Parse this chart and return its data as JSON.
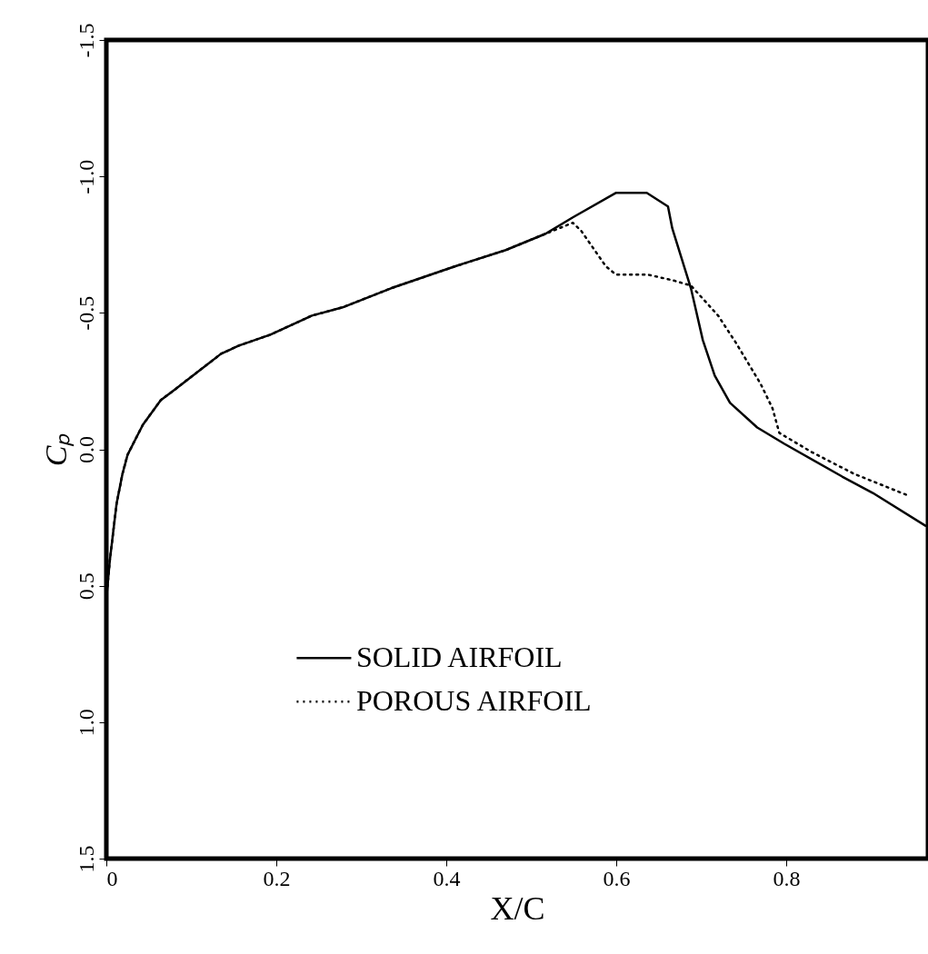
{
  "chart_data": {
    "type": "line",
    "xlabel": "X/C",
    "ylabel": "Cₚ",
    "xlim": [
      0,
      0.967
    ],
    "ylim": [
      1.5,
      -1.5
    ],
    "xticks": [
      0,
      0.2,
      0.4,
      0.6,
      0.8
    ],
    "yticks": [
      -1.5,
      {
        "value": -1,
        "label": "-1.0"
      },
      -0.5,
      {
        "value": 0,
        "label": "0.0"
      },
      0.5,
      {
        "value": 1,
        "label": "1.0"
      },
      1.5
    ],
    "grid": false,
    "legend": "bottom",
    "marker": "none",
    "series": [
      {
        "name": "SOLID AIRFOIL",
        "color": "#000000",
        "line_style": "solid",
        "x": [
          0,
          0.004,
          0.012,
          0.019,
          0.025,
          0.043,
          0.064,
          0.081,
          0.11,
          0.135,
          0.156,
          0.193,
          0.242,
          0.278,
          0.335,
          0.41,
          0.47,
          0.517,
          0.549,
          0.6,
          0.636,
          0.661,
          0.666,
          0.688,
          0.702,
          0.716,
          0.734,
          0.766,
          0.798,
          0.866,
          0.902,
          0.964
        ],
        "values": [
          0.55,
          0.41,
          0.2,
          0.09,
          0.02,
          -0.09,
          -0.18,
          -0.22,
          -0.29,
          -0.35,
          -0.38,
          -0.42,
          -0.49,
          -0.52,
          -0.59,
          -0.67,
          -0.73,
          -0.79,
          -0.85,
          -0.94,
          -0.94,
          -0.89,
          -0.81,
          -0.59,
          -0.4,
          -0.27,
          -0.17,
          -0.08,
          -0.02,
          0.1,
          0.16,
          0.28
        ]
      },
      {
        "name": "POROUS AIRFOIL",
        "color": "#000000",
        "line_style": "dotted",
        "x": [
          0,
          0.004,
          0.012,
          0.019,
          0.025,
          0.043,
          0.064,
          0.081,
          0.11,
          0.135,
          0.156,
          0.193,
          0.242,
          0.278,
          0.335,
          0.41,
          0.47,
          0.517,
          0.549,
          0.559,
          0.588,
          0.6,
          0.637,
          0.666,
          0.688,
          0.72,
          0.741,
          0.77,
          0.784,
          0.792,
          0.83,
          0.88,
          0.944
        ],
        "values": [
          0.55,
          0.41,
          0.2,
          0.09,
          0.02,
          -0.09,
          -0.18,
          -0.22,
          -0.29,
          -0.35,
          -0.38,
          -0.42,
          -0.49,
          -0.52,
          -0.59,
          -0.67,
          -0.73,
          -0.79,
          -0.83,
          -0.8,
          -0.67,
          -0.64,
          -0.64,
          -0.62,
          -0.6,
          -0.49,
          -0.39,
          -0.24,
          -0.15,
          -0.06,
          0.01,
          0.09,
          0.17
        ]
      }
    ]
  }
}
